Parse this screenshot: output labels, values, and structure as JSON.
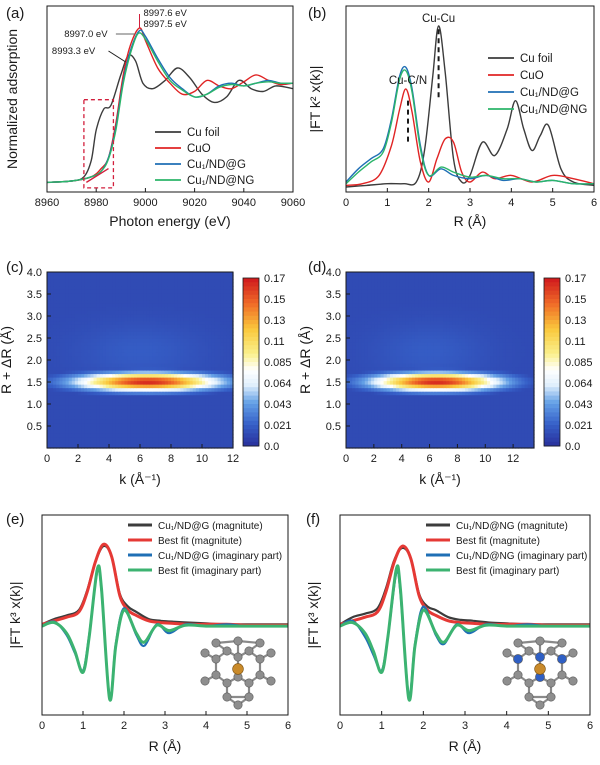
{
  "colors": {
    "cu_foil": "#3c3c3c",
    "cuo": "#e02424",
    "cu1_nd_g": "#1f6fb5",
    "cu1_nd_ng": "#2bb56a",
    "fit_red": "#e53935",
    "fit_green": "#3cb371",
    "annotation_red": "#d21f3c",
    "heat_low": "#2a35a0",
    "heat_high": "#d21e1e"
  },
  "chart_data": [
    {
      "panel": "(a)",
      "type": "line",
      "xlabel": "Photon energy (eV)",
      "ylabel": "Normalized adsorption",
      "xlim": [
        8960,
        9060
      ],
      "xticks": [
        8960,
        8980,
        9000,
        9020,
        9040,
        9060
      ],
      "show_yticklabels": false,
      "legend": [
        "Cu foil",
        "CuO",
        "Cu₁/ND@G",
        "Cu₁/ND@NG"
      ],
      "legend_position": "bottom-right",
      "annotations": [
        "8997.6 eV",
        "8997.5 eV",
        "8997.0 eV",
        "8993.3 eV"
      ],
      "series": [
        {
          "name": "Cu foil",
          "x": [
            8960,
            8970,
            8975,
            8978,
            8980,
            8983,
            8986,
            8990,
            8993,
            8996,
            8999,
            9003,
            9008,
            9013,
            9018,
            9023,
            9028,
            9033,
            9038,
            9043,
            9048,
            9053,
            9060
          ],
          "y": [
            0.02,
            0.03,
            0.06,
            0.18,
            0.4,
            0.55,
            0.58,
            0.8,
            0.94,
            0.9,
            0.74,
            0.7,
            0.76,
            0.85,
            0.78,
            0.66,
            0.6,
            0.64,
            0.76,
            0.7,
            0.68,
            0.72,
            0.7
          ]
        },
        {
          "name": "CuO",
          "x": [
            8960,
            8970,
            8978,
            8982,
            8985,
            8988,
            8991,
            8994,
            8997.6,
            9000,
            9005,
            9010,
            9015,
            9020,
            9025,
            9030,
            9035,
            9040,
            9045,
            9050,
            9055,
            9060
          ],
          "y": [
            0.02,
            0.03,
            0.06,
            0.12,
            0.2,
            0.45,
            0.8,
            1.02,
            1.14,
            1.05,
            0.85,
            0.74,
            0.66,
            0.68,
            0.76,
            0.72,
            0.7,
            0.75,
            0.8,
            0.76,
            0.73,
            0.74
          ]
        },
        {
          "name": "Cu₁/ND@G",
          "x": [
            8960,
            8970,
            8978,
            8982,
            8985,
            8988,
            8991,
            8994,
            8997.5,
            9000,
            9005,
            9010,
            9015,
            9020,
            9025,
            9030,
            9035,
            9040,
            9045,
            9050,
            9055,
            9060
          ],
          "y": [
            0.02,
            0.03,
            0.06,
            0.1,
            0.2,
            0.42,
            0.76,
            0.98,
            1.12,
            1.08,
            0.92,
            0.78,
            0.7,
            0.64,
            0.66,
            0.72,
            0.74,
            0.72,
            0.74,
            0.76,
            0.74,
            0.74
          ]
        },
        {
          "name": "Cu₁/ND@NG",
          "x": [
            8960,
            8970,
            8978,
            8982,
            8985,
            8988,
            8991,
            8994,
            8997.0,
            9000,
            9005,
            9010,
            9015,
            9020,
            9025,
            9030,
            9035,
            9040,
            9045,
            9050,
            9055,
            9060
          ],
          "y": [
            0.02,
            0.03,
            0.06,
            0.1,
            0.19,
            0.4,
            0.74,
            0.96,
            1.1,
            1.06,
            0.9,
            0.76,
            0.69,
            0.64,
            0.66,
            0.71,
            0.73,
            0.72,
            0.74,
            0.75,
            0.74,
            0.74
          ]
        }
      ]
    },
    {
      "panel": "(b)",
      "type": "line",
      "xlabel": "R (Å)",
      "ylabel": "|FT k² x(k)|",
      "xlim": [
        0,
        6
      ],
      "xticks": [
        0,
        1,
        2,
        3,
        4,
        5,
        6
      ],
      "show_yticklabels": false,
      "legend": [
        "Cu foil",
        "CuO",
        "Cu₁/ND@G",
        "Cu₁/ND@NG"
      ],
      "legend_position": "top-right",
      "annotations": [
        "Cu-Cu",
        "Cu-C/N"
      ],
      "series": [
        {
          "name": "Cu foil",
          "x": [
            0,
            0.5,
            1.0,
            1.4,
            1.7,
            1.9,
            2.1,
            2.24,
            2.4,
            2.6,
            2.8,
            3.0,
            3.3,
            3.6,
            3.9,
            4.1,
            4.3,
            4.5,
            4.7,
            4.9,
            5.2,
            5.5,
            6.0
          ],
          "y": [
            0.03,
            0.04,
            0.05,
            0.05,
            0.06,
            0.25,
            0.7,
            1.0,
            0.72,
            0.2,
            0.06,
            0.1,
            0.3,
            0.22,
            0.38,
            0.55,
            0.38,
            0.25,
            0.34,
            0.4,
            0.14,
            0.06,
            0.04
          ]
        },
        {
          "name": "CuO",
          "x": [
            0,
            0.4,
            0.8,
            1.1,
            1.3,
            1.45,
            1.6,
            1.8,
            2.0,
            2.2,
            2.4,
            2.6,
            2.8,
            3.0,
            3.3,
            3.6,
            4.0,
            4.5,
            5.0,
            5.5,
            6.0
          ],
          "y": [
            0.04,
            0.05,
            0.1,
            0.28,
            0.5,
            0.62,
            0.48,
            0.18,
            0.06,
            0.2,
            0.32,
            0.3,
            0.12,
            0.06,
            0.12,
            0.08,
            0.1,
            0.06,
            0.1,
            0.08,
            0.05
          ]
        },
        {
          "name": "Cu₁/ND@G",
          "x": [
            0,
            0.3,
            0.6,
            0.9,
            1.1,
            1.3,
            1.45,
            1.6,
            1.8,
            2.0,
            2.3,
            2.6,
            3.0,
            3.4,
            3.8,
            4.2,
            4.6,
            5.0,
            5.5,
            6.0
          ],
          "y": [
            0.06,
            0.14,
            0.2,
            0.26,
            0.44,
            0.7,
            0.75,
            0.62,
            0.28,
            0.1,
            0.14,
            0.1,
            0.08,
            0.1,
            0.07,
            0.08,
            0.06,
            0.07,
            0.05,
            0.05
          ]
        },
        {
          "name": "Cu₁/ND@NG",
          "x": [
            0,
            0.3,
            0.6,
            0.9,
            1.1,
            1.3,
            1.45,
            1.6,
            1.8,
            2.0,
            2.3,
            2.6,
            3.0,
            3.4,
            3.8,
            4.2,
            4.6,
            5.0,
            5.5,
            6.0
          ],
          "y": [
            0.05,
            0.12,
            0.18,
            0.24,
            0.42,
            0.68,
            0.73,
            0.6,
            0.26,
            0.1,
            0.15,
            0.12,
            0.09,
            0.1,
            0.08,
            0.08,
            0.06,
            0.07,
            0.05,
            0.05
          ]
        }
      ]
    },
    {
      "panel": "(c)",
      "type": "heatmap",
      "xlabel": "k (Å⁻¹)",
      "ylabel": "R + ΔR (Å)",
      "xlim": [
        0,
        12
      ],
      "ylim": [
        0,
        4.0
      ],
      "xticks": [
        0,
        2,
        4,
        6,
        8,
        10,
        12
      ],
      "yticks": [
        0.5,
        1.0,
        1.5,
        2.0,
        2.5,
        3.0,
        3.5,
        4.0
      ],
      "colorbar_ticks": [
        "0.17",
        "0.15",
        "0.13",
        "0.11",
        "0.085",
        "0.064",
        "0.043",
        "0.021",
        "0.0"
      ],
      "peak": {
        "k": 6.5,
        "R": 1.5,
        "value": 0.17,
        "k_spread": 4.5,
        "R_spread": 0.2
      }
    },
    {
      "panel": "(d)",
      "type": "heatmap",
      "xlabel": "k (Å⁻¹)",
      "ylabel": "R + ΔR (Å)",
      "xlim": [
        0,
        13.5
      ],
      "ylim": [
        0,
        4.0
      ],
      "xticks": [
        0,
        2,
        4,
        6,
        8,
        10,
        12
      ],
      "yticks": [
        0.5,
        1.0,
        1.5,
        2.0,
        2.5,
        3.0,
        3.5,
        4.0
      ],
      "colorbar_ticks": [
        "0.17",
        "0.15",
        "0.13",
        "0.11",
        "0.085",
        "0.064",
        "0.043",
        "0.021",
        "0.0"
      ],
      "peak": {
        "k": 6.5,
        "R": 1.5,
        "value": 0.17,
        "k_spread": 4.5,
        "R_spread": 0.2
      }
    },
    {
      "panel": "(e)",
      "type": "line",
      "xlabel": "R (Å)",
      "ylabel": "|FT k³ x(k)|",
      "xlim": [
        0,
        6
      ],
      "xticks": [
        0,
        1,
        2,
        3,
        4,
        5,
        6
      ],
      "show_yticklabels": false,
      "legend": [
        "Cu₁/ND@G (magnitute)",
        "Best fit (magnitute)",
        "Cu₁/ND@G (imaginary part)",
        "Best fit (imaginary part)"
      ],
      "legend_position": "top-right",
      "series": [
        {
          "name": "Cu₁/ND@G (magnitute)",
          "x": [
            0,
            0.3,
            0.6,
            0.9,
            1.1,
            1.3,
            1.5,
            1.7,
            1.9,
            2.1,
            2.3,
            2.6,
            2.9,
            3.2,
            3.6,
            4.0,
            4.5,
            5.0,
            5.5,
            6.0
          ],
          "y": [
            0.02,
            0.08,
            0.12,
            0.18,
            0.4,
            0.72,
            0.9,
            0.78,
            0.36,
            0.22,
            0.16,
            0.08,
            0.06,
            0.05,
            0.04,
            0.03,
            0.02,
            0.02,
            0.02,
            0.02
          ]
        },
        {
          "name": "Best fit (magnitute)",
          "x": [
            0,
            0.3,
            0.6,
            0.9,
            1.1,
            1.3,
            1.5,
            1.7,
            1.9,
            2.1,
            2.3,
            2.6,
            2.9,
            3.2,
            3.6,
            4.0,
            4.5,
            5.0,
            5.5,
            6.0
          ],
          "y": [
            0.02,
            0.06,
            0.1,
            0.16,
            0.38,
            0.72,
            0.92,
            0.78,
            0.34,
            0.18,
            0.12,
            0.06,
            0.04,
            0.03,
            0.02,
            0.02,
            0.02,
            0.01,
            0.01,
            0.01
          ]
        },
        {
          "name": "Cu₁/ND@G (imaginary part)",
          "x": [
            0,
            0.3,
            0.6,
            0.8,
            1.0,
            1.15,
            1.35,
            1.45,
            1.65,
            1.8,
            2.0,
            2.3,
            2.5,
            2.8,
            3.1,
            3.5,
            4.0,
            4.5,
            5.0,
            6.0
          ],
          "y": [
            0.0,
            0.05,
            -0.1,
            -0.3,
            -0.5,
            -0.1,
            0.62,
            0.4,
            -0.8,
            -0.2,
            0.2,
            -0.1,
            -0.22,
            0.02,
            -0.08,
            0.02,
            0.0,
            0.02,
            0.0,
            0.0
          ]
        },
        {
          "name": "Best fit (imaginary part)",
          "x": [
            0,
            0.3,
            0.6,
            0.8,
            1.0,
            1.15,
            1.35,
            1.45,
            1.65,
            1.8,
            2.0,
            2.3,
            2.5,
            2.8,
            3.1,
            3.5,
            4.0,
            4.5,
            5.0,
            6.0
          ],
          "y": [
            0.0,
            0.04,
            -0.08,
            -0.28,
            -0.52,
            -0.12,
            0.64,
            0.42,
            -0.82,
            -0.22,
            0.18,
            -0.08,
            -0.18,
            0.01,
            -0.05,
            0.01,
            0.0,
            0.0,
            0.0,
            0.0
          ]
        }
      ]
    },
    {
      "panel": "(f)",
      "type": "line",
      "xlabel": "R (Å)",
      "ylabel": "|FT k³ x(k)|",
      "xlim": [
        0,
        6
      ],
      "xticks": [
        0,
        1,
        2,
        3,
        4,
        5,
        6
      ],
      "show_yticklabels": false,
      "legend": [
        "Cu₁/ND@NG (magnitute)",
        "Best fit (magnitute)",
        "Cu₁/ND@NG (imaginary part)",
        "Best fit (imaginary part)"
      ],
      "legend_position": "top-right",
      "series": [
        {
          "name": "Cu₁/ND@NG (magnitute)",
          "x": [
            0,
            0.3,
            0.6,
            0.9,
            1.1,
            1.3,
            1.5,
            1.7,
            1.9,
            2.1,
            2.3,
            2.6,
            2.9,
            3.2,
            3.6,
            4.0,
            4.5,
            5.0,
            5.5,
            6.0
          ],
          "y": [
            0.02,
            0.1,
            0.14,
            0.2,
            0.42,
            0.74,
            0.88,
            0.76,
            0.36,
            0.22,
            0.18,
            0.1,
            0.07,
            0.06,
            0.04,
            0.03,
            0.02,
            0.02,
            0.02,
            0.02
          ]
        },
        {
          "name": "Best fit (magnitute)",
          "x": [
            0,
            0.3,
            0.6,
            0.9,
            1.1,
            1.3,
            1.5,
            1.7,
            1.9,
            2.1,
            2.3,
            2.6,
            2.9,
            3.2,
            3.6,
            4.0,
            4.5,
            5.0,
            5.5,
            6.0
          ],
          "y": [
            0.02,
            0.06,
            0.1,
            0.16,
            0.38,
            0.72,
            0.9,
            0.76,
            0.34,
            0.18,
            0.12,
            0.06,
            0.04,
            0.03,
            0.02,
            0.02,
            0.02,
            0.01,
            0.01,
            0.01
          ]
        },
        {
          "name": "Cu₁/ND@NG (imaginary part)",
          "x": [
            0,
            0.3,
            0.6,
            0.8,
            1.0,
            1.15,
            1.35,
            1.45,
            1.65,
            1.8,
            2.0,
            2.3,
            2.5,
            2.8,
            3.1,
            3.5,
            4.0,
            4.5,
            5.0,
            6.0
          ],
          "y": [
            0.0,
            0.06,
            -0.12,
            -0.32,
            -0.5,
            -0.12,
            0.6,
            0.38,
            -0.78,
            -0.2,
            0.22,
            -0.1,
            -0.2,
            0.02,
            -0.08,
            0.02,
            0.0,
            0.02,
            0.0,
            0.0
          ]
        },
        {
          "name": "Best fit (imaginary part)",
          "x": [
            0,
            0.3,
            0.6,
            0.8,
            1.0,
            1.15,
            1.35,
            1.45,
            1.65,
            1.8,
            2.0,
            2.3,
            2.5,
            2.8,
            3.1,
            3.5,
            4.0,
            4.5,
            5.0,
            6.0
          ],
          "y": [
            0.0,
            0.04,
            -0.08,
            -0.28,
            -0.52,
            -0.12,
            0.64,
            0.42,
            -0.82,
            -0.22,
            0.18,
            -0.08,
            -0.18,
            0.01,
            -0.05,
            0.01,
            0.0,
            0.0,
            0.0,
            0.0
          ]
        }
      ]
    }
  ]
}
